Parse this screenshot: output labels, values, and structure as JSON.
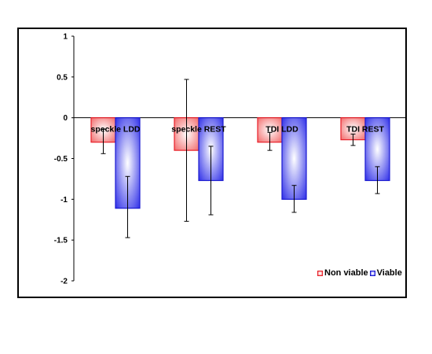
{
  "chart_data": {
    "type": "bar",
    "categories": [
      "speckle LDD",
      "speckle REST",
      "TDI LDD",
      "TDI REST"
    ],
    "series": [
      {
        "name": "Non viable",
        "values": [
          -0.3,
          -0.4,
          -0.3,
          -0.27
        ],
        "error_low": [
          -0.44,
          -1.27,
          -0.4,
          -0.34
        ],
        "error_high": [
          -0.14,
          0.47,
          -0.18,
          -0.2
        ],
        "color": "#e8202a"
      },
      {
        "name": "Viable",
        "values": [
          -1.11,
          -0.77,
          -1.0,
          -0.77
        ],
        "error_low": [
          -1.47,
          -1.19,
          -1.16,
          -0.93
        ],
        "error_high": [
          -0.72,
          -0.35,
          -0.83,
          -0.6
        ],
        "color": "#1a1ad0"
      }
    ],
    "yticks": [
      "1",
      "0.5",
      "0",
      "-0.5",
      "-1",
      "-1.5",
      "-2"
    ],
    "ylim": [
      -2,
      1
    ],
    "grid": false,
    "legend_position": "bottom-right"
  }
}
